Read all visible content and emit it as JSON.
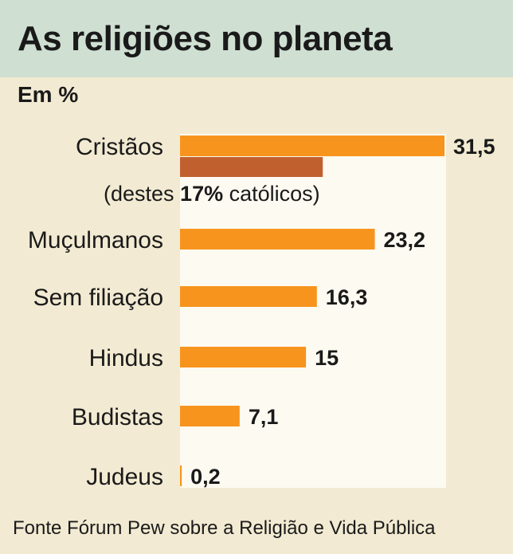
{
  "title": "As religiões no planeta",
  "unit_label": "Em %",
  "note": {
    "prefix": "(destes ",
    "highlight": "17%",
    "suffix": " católicos)"
  },
  "source": "Fonte Fórum Pew  sobre a Religião e Vida Pública",
  "colors": {
    "header_bg": "#cfe0d3",
    "page_bg": "#f2ead2",
    "panel_bg": "#fdfaf1",
    "bar": "#f7941d",
    "sub_bar": "#c1602f"
  },
  "chart_data": {
    "type": "bar",
    "orientation": "horizontal",
    "title": "As religiões no planeta",
    "ylabel": "Em %",
    "xlim": [
      0,
      31.5
    ],
    "categories": [
      "Cristãos",
      "Muçulmanos",
      "Sem filiação",
      "Hindus",
      "Budistas",
      "Judeus"
    ],
    "values": [
      31.5,
      23.2,
      16.3,
      15,
      7.1,
      0.2
    ],
    "value_labels": [
      "31,5",
      "23,2",
      "16,3",
      "15",
      "7,1",
      "0,2"
    ],
    "sub_bar": {
      "category": "Cristãos",
      "value": 17,
      "label": "17%"
    }
  }
}
